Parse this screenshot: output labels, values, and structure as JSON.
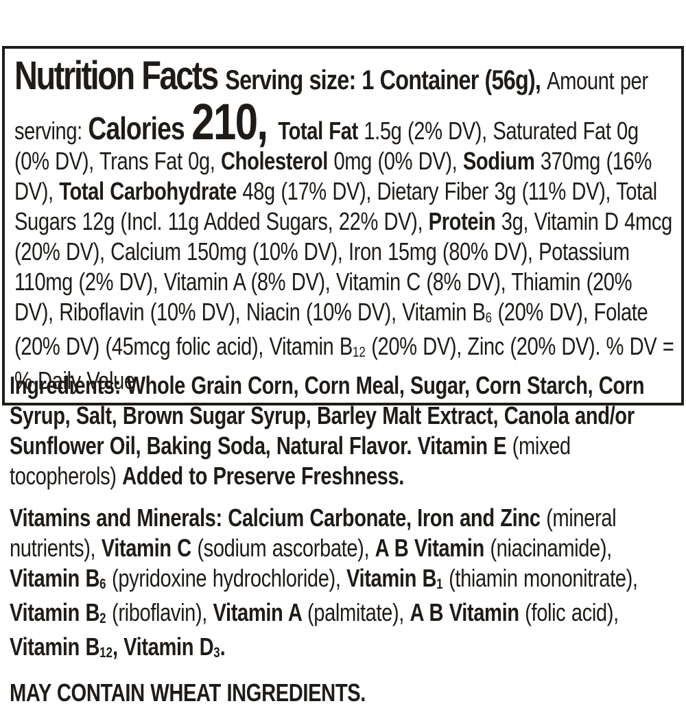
{
  "colors": {
    "text": "#1e1b18",
    "background": "#ffffff",
    "panel_border": "#1e1b18"
  },
  "nutrition_panel": {
    "runs": [
      {
        "text": "Nutrition Facts ",
        "style": "title"
      },
      {
        "text": "Serving size: 1 Container (56g), ",
        "style": "serving"
      },
      {
        "text": "Amount per serving: ",
        "style": "regular"
      },
      {
        "text": "Calories ",
        "style": "calories-label"
      },
      {
        "text": "210, ",
        "style": "calories-value"
      },
      {
        "text": "Total Fat ",
        "style": "bold"
      },
      {
        "text": "1.5g (2% DV), Saturated Fat 0g (0% DV), Trans Fat 0g, ",
        "style": "regular"
      },
      {
        "text": "Cholesterol ",
        "style": "bold"
      },
      {
        "text": "0mg (0% DV), ",
        "style": "regular"
      },
      {
        "text": "Sodium ",
        "style": "bold"
      },
      {
        "text": "370mg (16% DV), ",
        "style": "regular"
      },
      {
        "text": "Total Carbohydrate ",
        "style": "bold"
      },
      {
        "text": "48g (17% DV), Dietary Fiber 3g (11% DV), Total Sugars 12g (Incl. 11g Added Sugars, 22% DV), ",
        "style": "regular"
      },
      {
        "text": "Protein ",
        "style": "bold"
      },
      {
        "text": "3g, Vitamin D 4mcg (20% DV), Calcium 150mg (10% DV), Iron 15mg (80% DV), Potassium 110mg (2% DV), Vitamin A (8% DV), Vitamin C (8% DV), Thiamin (20% DV), Riboflavin (10% DV), Niacin (10% DV), Vitamin B",
        "style": "regular"
      },
      {
        "text": "6",
        "style": "regular",
        "sub": true
      },
      {
        "text": " (20% DV), Folate (20% DV) (45mcg folic acid), Vitamin B",
        "style": "regular"
      },
      {
        "text": "12",
        "style": "regular",
        "sub": true
      },
      {
        "text": " (20% DV), Zinc (20% DV). % DV = % Daily Value",
        "style": "regular"
      }
    ]
  },
  "ingredients": {
    "runs": [
      {
        "text": "Ingredients: Whole Grain Corn, Corn Meal, Sugar, Corn Starch, Corn Syrup, Salt, Brown Sugar Syrup, Barley Malt Extract, Canola and/or Sunflower Oil, Baking Soda, Natural Flavor. Vitamin E ",
        "style": "bold"
      },
      {
        "text": "(mixed tocopherols) ",
        "style": "regular"
      },
      {
        "text": "Added to Preserve Freshness.",
        "style": "bold"
      }
    ]
  },
  "vitamins_minerals": {
    "runs": [
      {
        "text": "Vitamins and Minerals: Calcium Carbonate, Iron and Zinc ",
        "style": "bold"
      },
      {
        "text": "(mineral nutrients), ",
        "style": "regular"
      },
      {
        "text": "Vitamin C ",
        "style": "bold"
      },
      {
        "text": "(sodium ascorbate), ",
        "style": "regular"
      },
      {
        "text": "A B Vitamin ",
        "style": "bold"
      },
      {
        "text": "(niacinamide), ",
        "style": "regular"
      },
      {
        "text": "Vitamin B",
        "style": "bold"
      },
      {
        "text": "6",
        "style": "bold",
        "sub": true
      },
      {
        "text": " (pyridoxine hydrochloride), ",
        "style": "regular"
      },
      {
        "text": "Vitamin B",
        "style": "bold"
      },
      {
        "text": "1",
        "style": "bold",
        "sub": true
      },
      {
        "text": " (thiamin mononitrate), ",
        "style": "regular"
      },
      {
        "text": "Vitamin B",
        "style": "bold"
      },
      {
        "text": "2",
        "style": "bold",
        "sub": true
      },
      {
        "text": " (riboflavin), ",
        "style": "regular"
      },
      {
        "text": "Vitamin A ",
        "style": "bold"
      },
      {
        "text": "(palmitate), ",
        "style": "regular"
      },
      {
        "text": "A B Vitamin ",
        "style": "bold"
      },
      {
        "text": "(folic acid), ",
        "style": "regular"
      },
      {
        "text": "Vitamin B",
        "style": "bold"
      },
      {
        "text": "12",
        "style": "bold",
        "sub": true
      },
      {
        "text": ", Vitamin D",
        "style": "bold"
      },
      {
        "text": "3",
        "style": "bold",
        "sub": true
      },
      {
        "text": ".",
        "style": "bold"
      }
    ]
  },
  "allergen": {
    "runs": [
      {
        "text": "MAY CONTAIN WHEAT INGREDIENTS.",
        "style": "bold"
      }
    ]
  }
}
